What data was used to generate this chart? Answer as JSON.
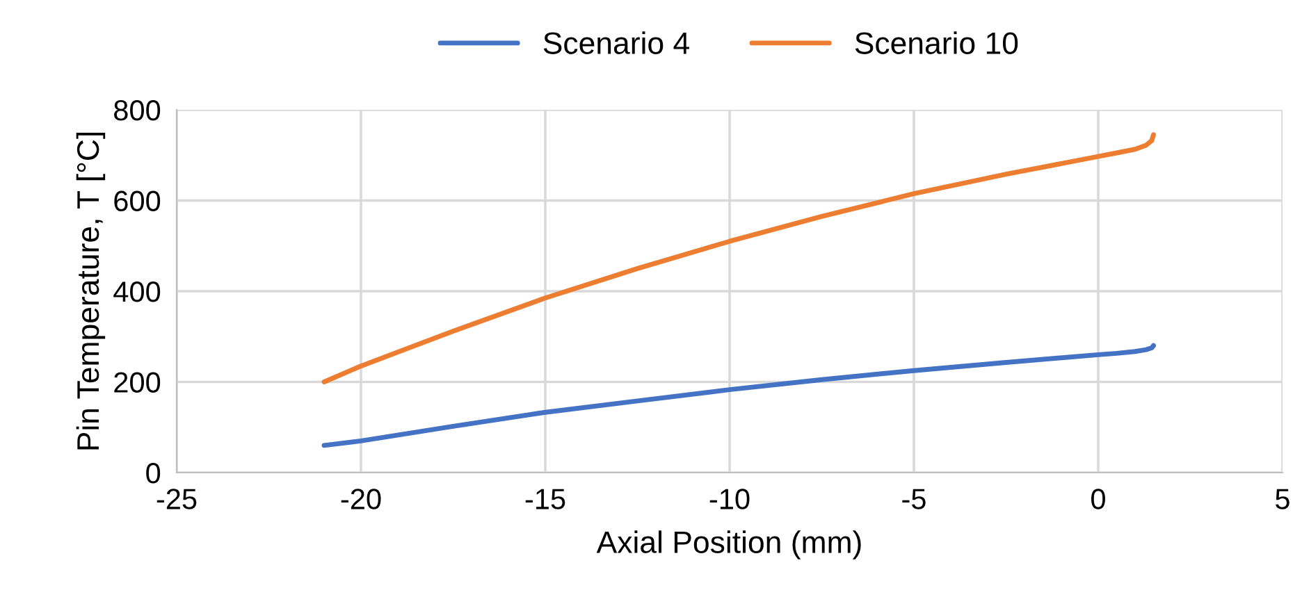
{
  "chart_data": {
    "type": "line",
    "xlabel": "Axial Position (mm)",
    "ylabel": "Pin Temperature, T [°C]",
    "series": [
      {
        "name": "Scenario 4",
        "color": "#4472c4",
        "x": [
          -21,
          -20,
          -17.5,
          -15,
          -12.5,
          -10,
          -7.5,
          -5,
          -2.5,
          0,
          0.5,
          1,
          1.3,
          1.45,
          1.5
        ],
        "values": [
          60,
          70,
          102,
          133,
          158,
          183,
          205,
          225,
          243,
          260,
          263,
          267,
          271,
          275,
          280
        ]
      },
      {
        "name": "Scenario 10",
        "color": "#ed7d31",
        "x": [
          -21,
          -20,
          -17.5,
          -15,
          -12.5,
          -10,
          -7.5,
          -5,
          -2.5,
          0,
          0.5,
          1,
          1.3,
          1.45,
          1.5
        ],
        "values": [
          200,
          235,
          312,
          385,
          450,
          510,
          565,
          615,
          658,
          697,
          705,
          713,
          722,
          732,
          745
        ]
      }
    ],
    "xlim": [
      -25,
      5
    ],
    "xticks": [
      -25,
      -20,
      -15,
      -10,
      -5,
      0,
      5
    ],
    "ylim": [
      0,
      800
    ],
    "yticks": [
      0,
      200,
      400,
      600,
      800
    ],
    "grid": true,
    "legend": "top"
  }
}
